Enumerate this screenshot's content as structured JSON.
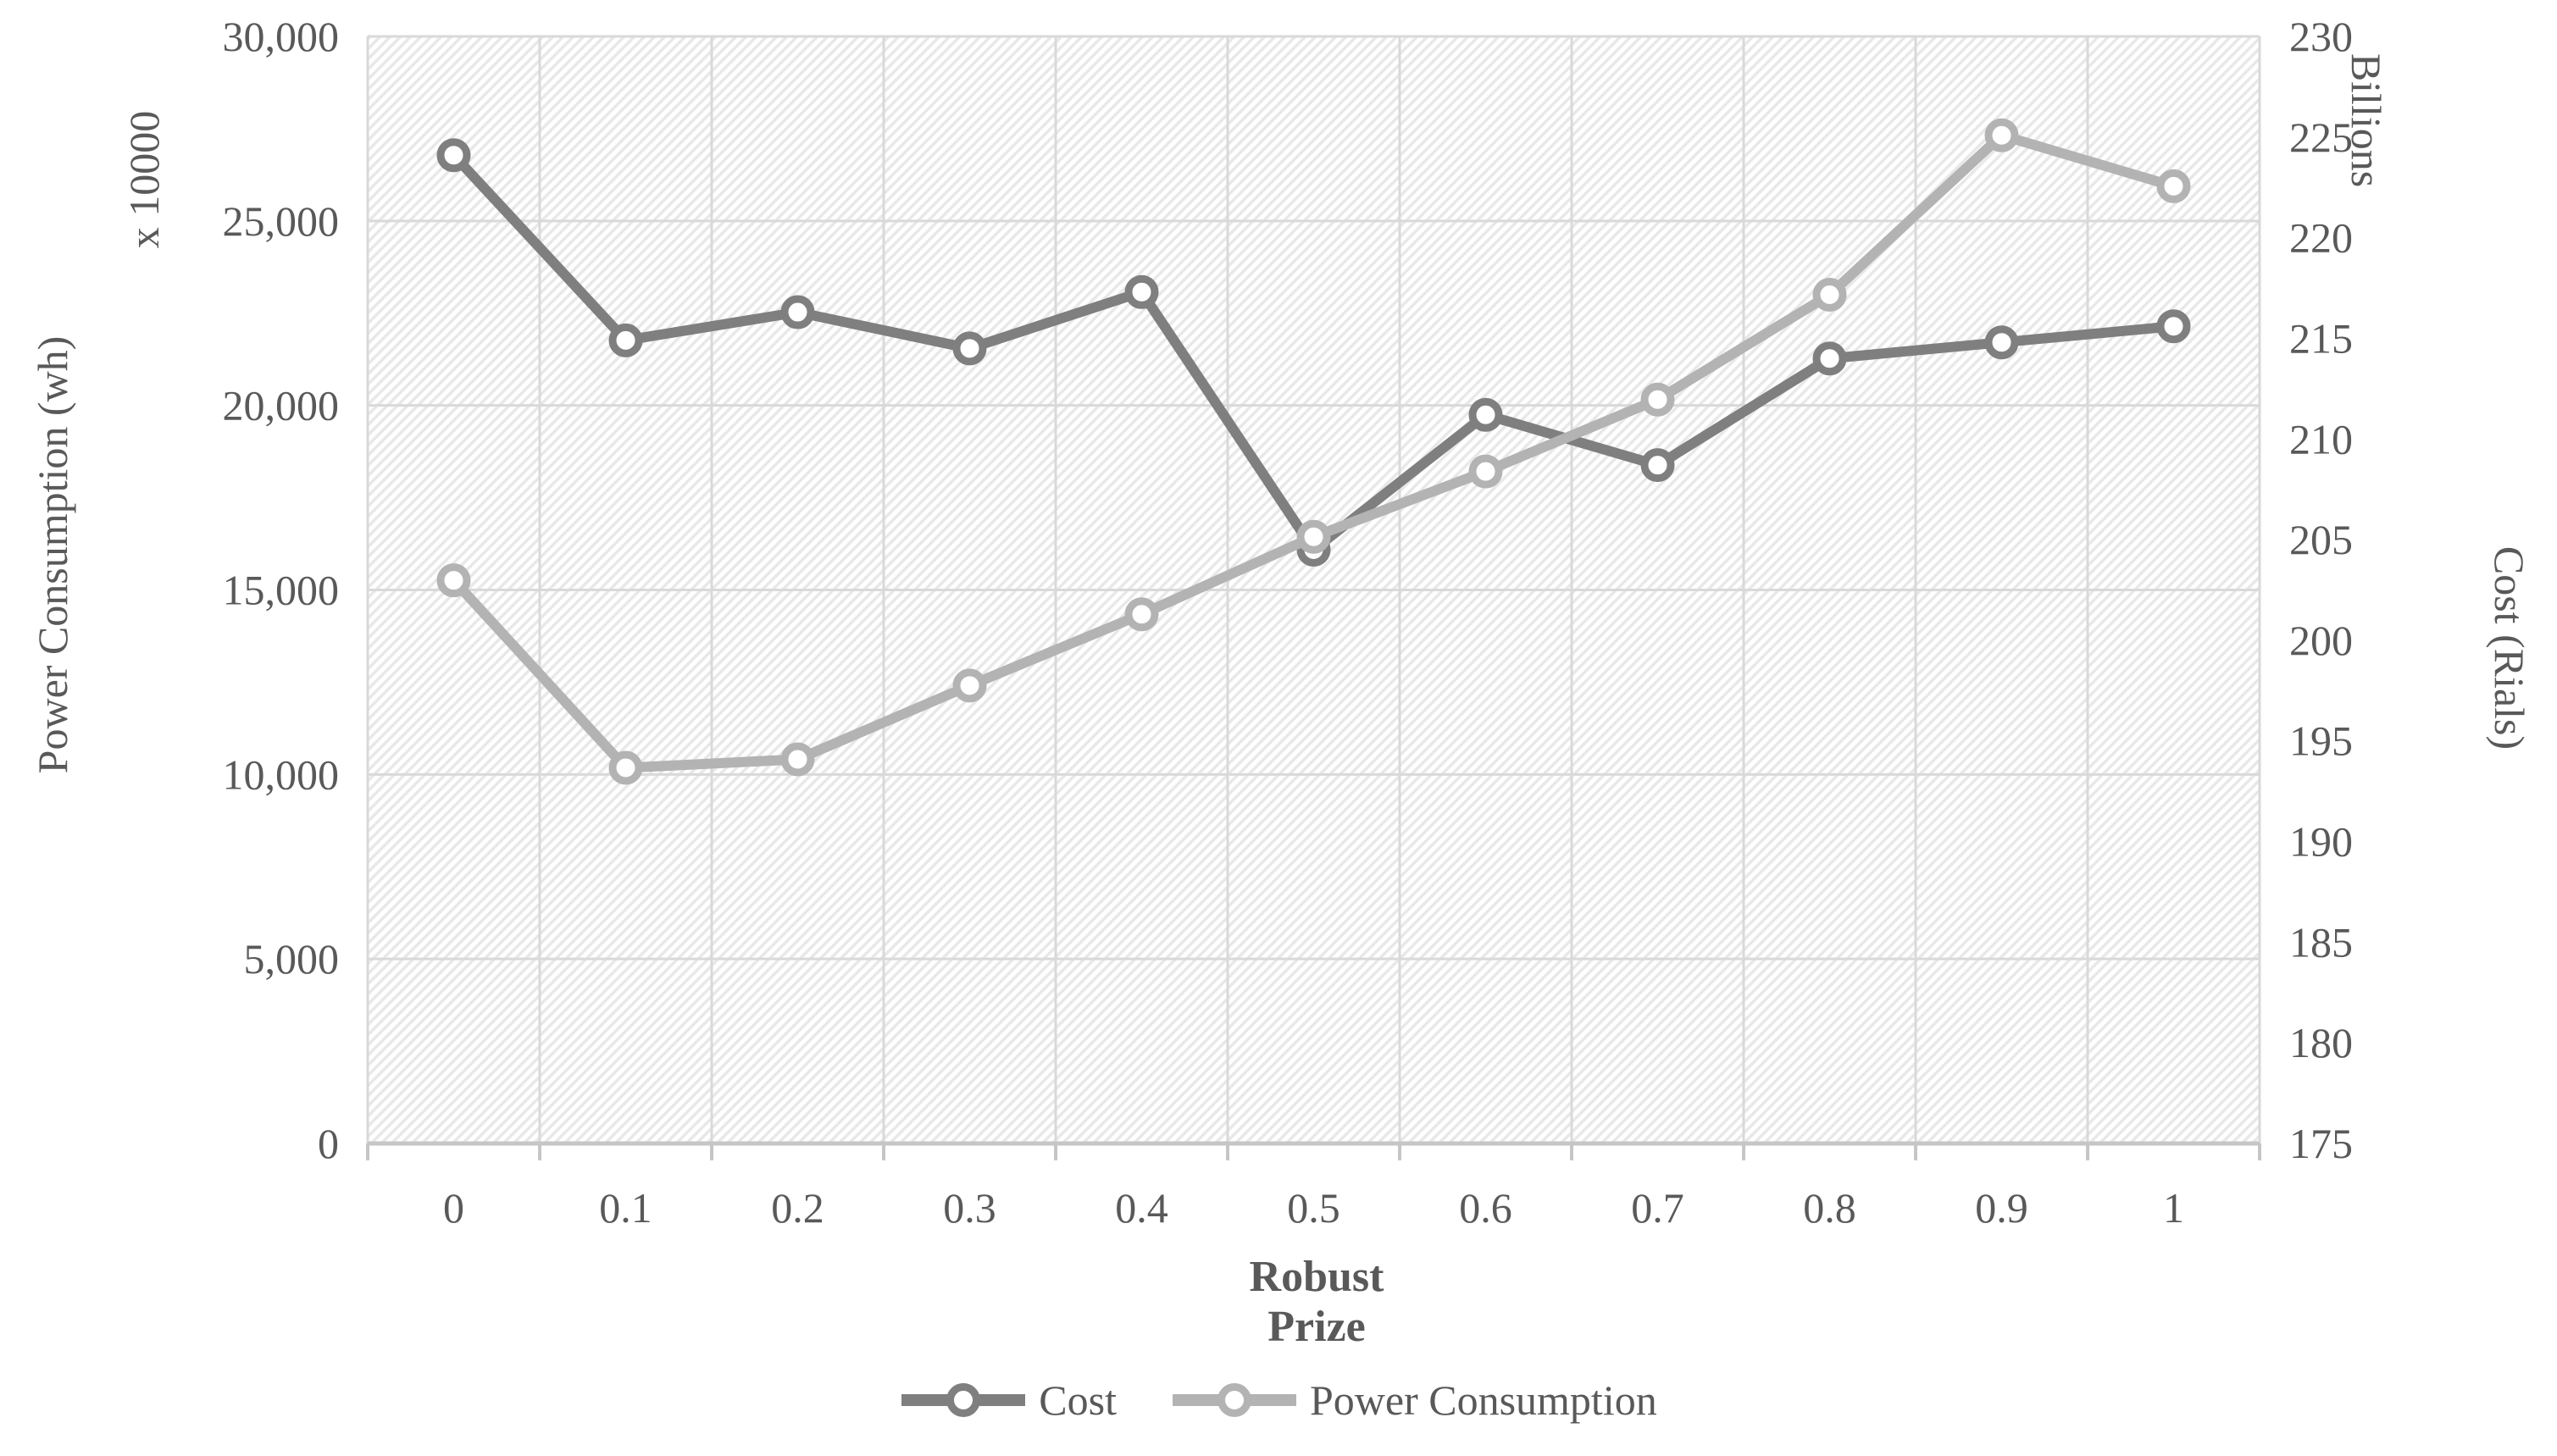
{
  "chart_data": {
    "type": "line",
    "title": "",
    "x_axis": {
      "title": "Robust Prize",
      "tick_labels": [
        "0",
        "0.1",
        "0.2",
        "0.3",
        "0.4",
        "0.5",
        "0.6",
        "0.7",
        "0.8",
        "0.9",
        "1"
      ],
      "values": [
        0,
        0.1,
        0.2,
        0.3,
        0.4,
        0.5,
        0.6,
        0.7,
        0.8,
        0.9,
        1
      ]
    },
    "left_axis": {
      "title": "Power Consumption (wh)",
      "unit_label": "x 10000",
      "min": 0,
      "max": 30000,
      "step": 5000,
      "tick_labels": [
        "30,000",
        "25,000",
        "20,000",
        "15,000",
        "10,000",
        "5,000",
        "0"
      ]
    },
    "right_axis": {
      "title": "Cost (Rials)",
      "unit_label": "Billions",
      "min": 175,
      "max": 230,
      "step": 5,
      "tick_labels": [
        "230",
        "225",
        "220",
        "215",
        "210",
        "205",
        "200",
        "195",
        "190",
        "185",
        "180",
        "175"
      ]
    },
    "series": [
      {
        "name": "Cost",
        "axis": "right",
        "color": "#7f7f7f",
        "marker": "open-circle",
        "values": [
          224.1,
          214.9,
          216.3,
          214.5,
          217.3,
          204.5,
          211.2,
          208.7,
          214.0,
          214.8,
          215.6
        ]
      },
      {
        "name": "Power Consumption",
        "axis": "left",
        "color": "#b3b3b3",
        "marker": "open-circle",
        "values": [
          15260,
          10180,
          10410,
          12410,
          14340,
          16440,
          18210,
          20160,
          23000,
          27320,
          25940
        ]
      }
    ],
    "legend_position": "bottom",
    "grid": true,
    "plot_background": "diagonal-hatch"
  },
  "styles": {
    "text_color": "#595959",
    "gridline_color": "#d9d9d9",
    "axis_line_color": "#c6c6c6",
    "hatch_color": "#e8e8e8",
    "background": "#ffffff"
  }
}
